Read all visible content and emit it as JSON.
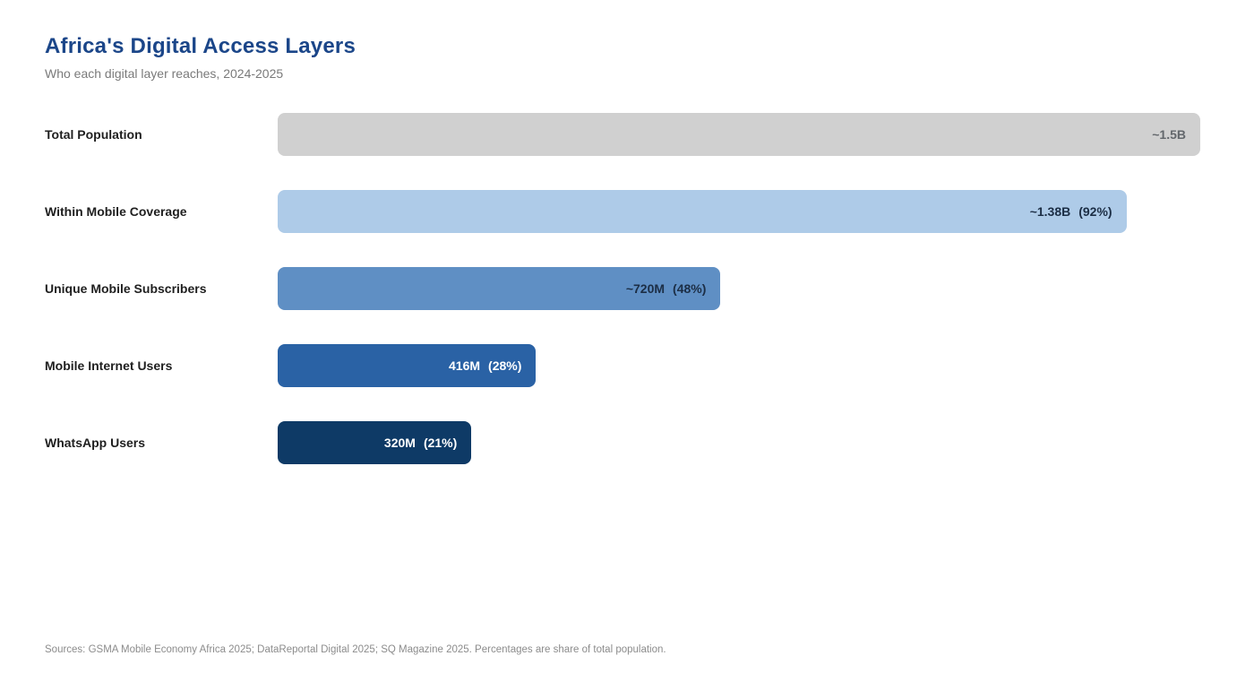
{
  "header": {
    "title": "Africa's Digital Access Layers",
    "subtitle": "Who each digital layer reaches, 2024-2025"
  },
  "chart_data": {
    "type": "bar",
    "orientation": "horizontal",
    "title": "Africa's Digital Access Layers",
    "subtitle": "Who each digital layer reaches, 2024-2025",
    "value_unit": "people (millions)",
    "percent_basis": "share of total population",
    "grid": false,
    "legend": "none",
    "xlim_pct": [
      0,
      100
    ],
    "categories": [
      "Total Population",
      "Within Mobile Coverage",
      "Unique Mobile Subscribers",
      "Mobile Internet Users",
      "WhatsApp Users"
    ],
    "values_millions": [
      1500,
      1380,
      720,
      416,
      320
    ],
    "pct_of_population": [
      100,
      92,
      48,
      28,
      21
    ],
    "rows": [
      {
        "label": "Total Population",
        "value_label": "~1.5B",
        "pct_label": "",
        "value_millions": 1500,
        "pct": 100,
        "bar_color": "#d0d0d0",
        "text_color": "#63676c"
      },
      {
        "label": "Within Mobile Coverage",
        "value_label": "~1.38B",
        "pct_label": "(92%)",
        "value_millions": 1380,
        "pct": 92,
        "bar_color": "#aecbe8",
        "text_color": "#1c2e45"
      },
      {
        "label": "Unique Mobile Subscribers",
        "value_label": "~720M",
        "pct_label": "(48%)",
        "value_millions": 720,
        "pct": 48,
        "bar_color": "#5f8fc4",
        "text_color": "#1c2e45"
      },
      {
        "label": "Mobile Internet Users",
        "value_label": "416M",
        "pct_label": "(28%)",
        "value_millions": 416,
        "pct": 28,
        "bar_color": "#2a62a5",
        "text_color": "#ffffff"
      },
      {
        "label": "WhatsApp Users",
        "value_label": "320M",
        "pct_label": "(21%)",
        "value_millions": 320,
        "pct": 21,
        "bar_color": "#0e3a66",
        "text_color": "#ffffff"
      }
    ]
  },
  "footer": {
    "sources": "Sources: GSMA Mobile Economy Africa 2025; DataReportal Digital 2025; SQ Magazine 2025. Percentages are share of total population."
  },
  "colors": {
    "title": "#1b4689",
    "subtitle": "#7a7a7a",
    "label_text": "#1f1f1f",
    "footer_text": "#8c8c8c",
    "background": "#ffffff"
  }
}
